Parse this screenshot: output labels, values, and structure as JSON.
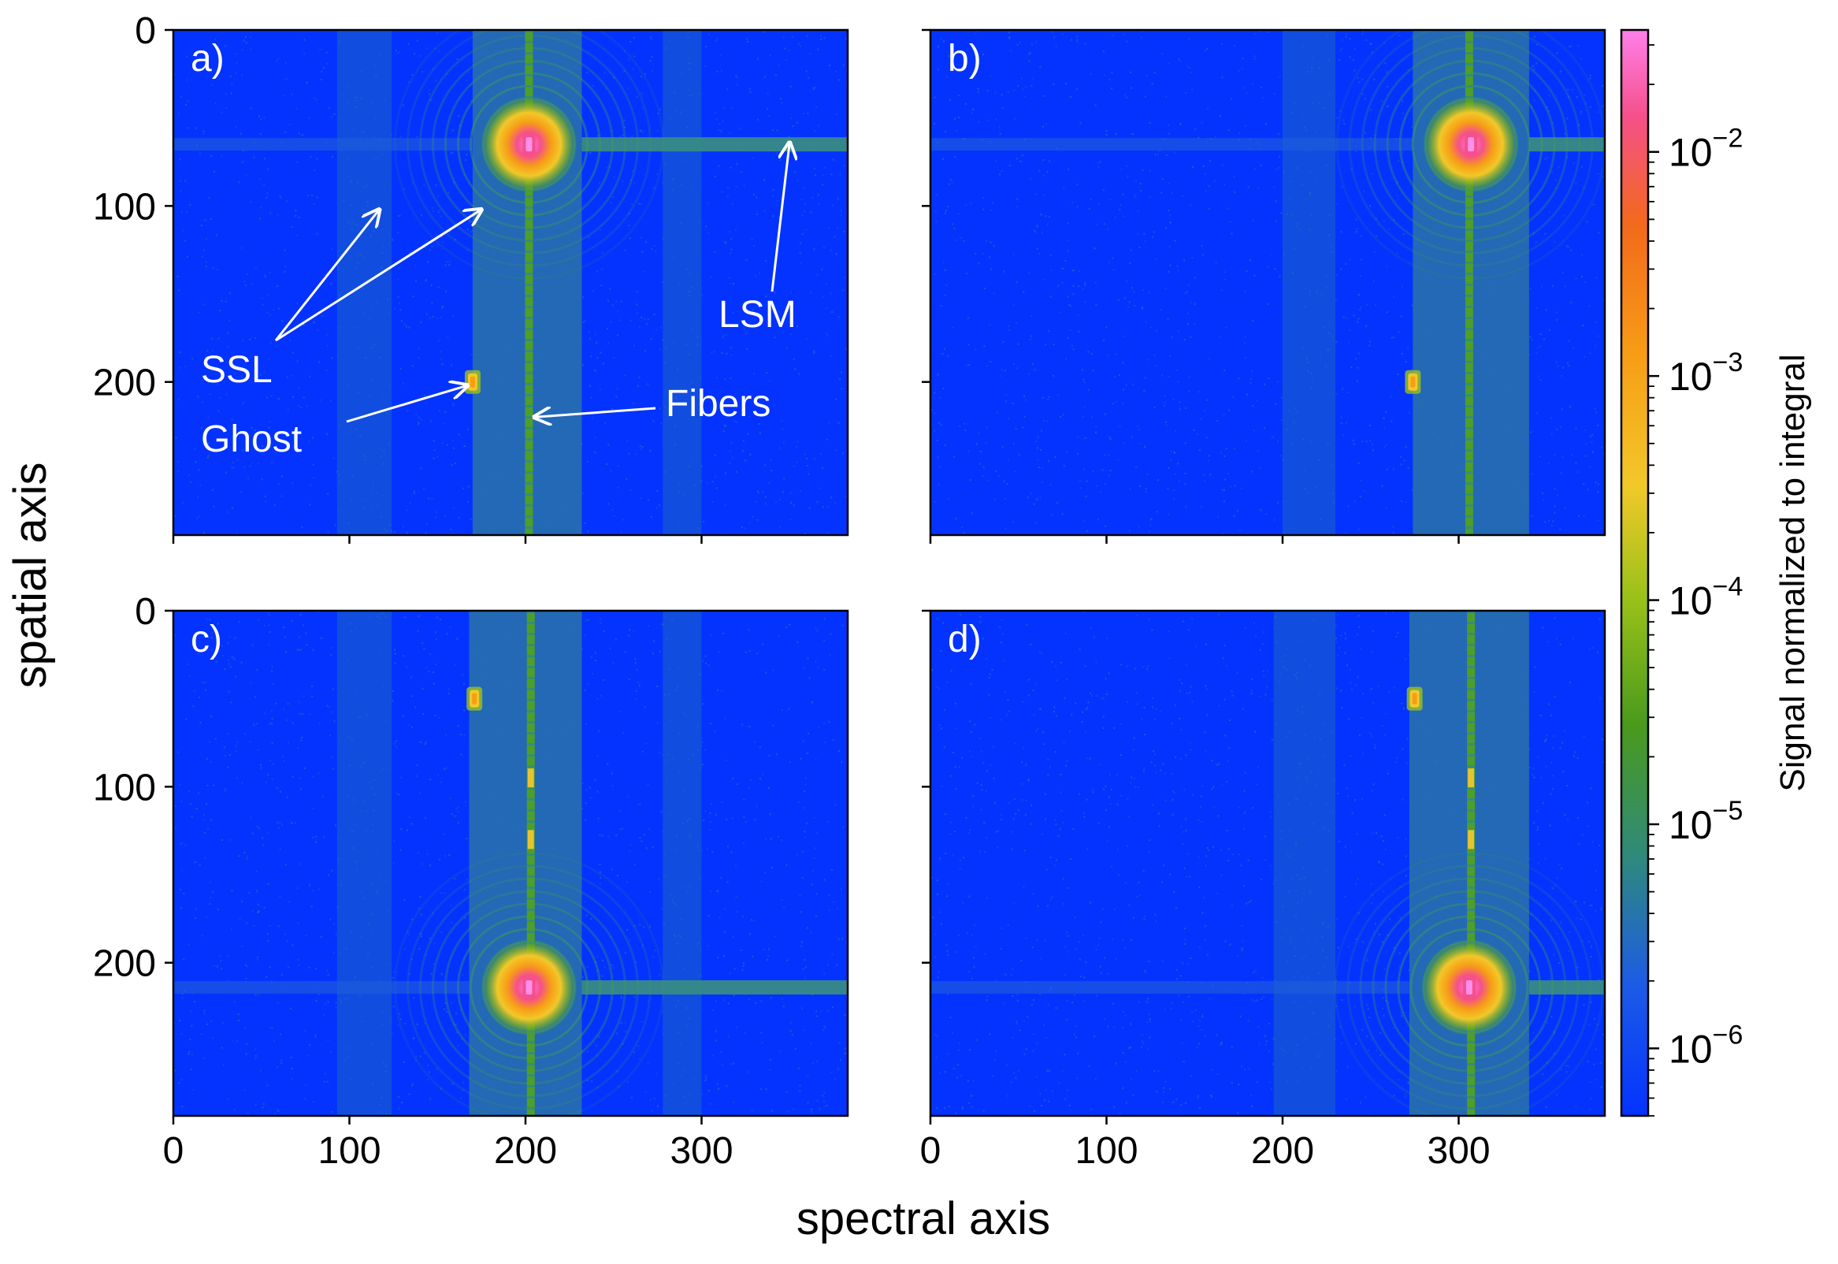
{
  "figure": {
    "xlabel": "spectral axis",
    "ylabel": "spatial axis",
    "colorbar": {
      "label": "Signal normalized to integral",
      "scale": "log",
      "range": [
        5e-07,
        0.035
      ],
      "ticks": [
        {
          "value": 1e-06,
          "base": "10",
          "exp": "−6"
        },
        {
          "value": 1e-05,
          "base": "10",
          "exp": "−5"
        },
        {
          "value": 0.0001,
          "base": "10",
          "exp": "−4"
        },
        {
          "value": 0.001,
          "base": "10",
          "exp": "−3"
        },
        {
          "value": 0.01,
          "base": "10",
          "exp": "−2"
        }
      ],
      "colormap": [
        "#0433ff",
        "#1c5be6",
        "#2f8a7a",
        "#4a9a1c",
        "#9cc21a",
        "#f2c829",
        "#f79d16",
        "#f26a1b",
        "#f5508a",
        "#ff80ea"
      ]
    },
    "annotations": [
      {
        "text": "SSL",
        "panel": "a"
      },
      {
        "text": "Ghost",
        "panel": "a"
      },
      {
        "text": "Fibers",
        "panel": "a"
      },
      {
        "text": "LSM",
        "panel": "a"
      }
    ]
  },
  "chart_data": [
    {
      "type": "heatmap",
      "panel_label": "a)",
      "xlim": [
        0,
        383
      ],
      "ylim": [
        287,
        0
      ],
      "xticks": [
        0,
        100,
        200,
        300
      ],
      "yticks": [
        0,
        100,
        200
      ],
      "show_xticklabels": false,
      "show_yticklabels": true,
      "background_level": 7e-07,
      "fiber_x": 202,
      "ssl_band_x": [
        170,
        232
      ],
      "faint_bands_x": [
        [
          93,
          124
        ],
        [
          278,
          300
        ]
      ],
      "main_spot": {
        "x": 202,
        "y": 65,
        "peak": 0.03
      },
      "ghost_spot": {
        "x": 170,
        "y": 200,
        "peak": 0.003
      },
      "lsm_stripe": {
        "y": 65,
        "x_from": 232,
        "x_to": 383
      },
      "fiber_hot_y": []
    },
    {
      "type": "heatmap",
      "panel_label": "b)",
      "xlim": [
        0,
        383
      ],
      "ylim": [
        287,
        0
      ],
      "xticks": [
        0,
        100,
        200,
        300
      ],
      "yticks": [
        0,
        100,
        200
      ],
      "show_xticklabels": false,
      "show_yticklabels": false,
      "background_level": 7e-07,
      "fiber_x": 306,
      "ssl_band_x": [
        274,
        340
      ],
      "faint_bands_x": [
        [
          200,
          230
        ]
      ],
      "main_spot": {
        "x": 307,
        "y": 65,
        "peak": 0.03
      },
      "ghost_spot": {
        "x": 274,
        "y": 200,
        "peak": 0.003
      },
      "lsm_stripe": {
        "y": 65,
        "x_from": 340,
        "x_to": 383
      },
      "fiber_hot_y": []
    },
    {
      "type": "heatmap",
      "panel_label": "c)",
      "xlim": [
        0,
        383
      ],
      "ylim": [
        287,
        0
      ],
      "xticks": [
        0,
        100,
        200,
        300
      ],
      "yticks": [
        0,
        100,
        200
      ],
      "show_xticklabels": true,
      "show_yticklabels": true,
      "background_level": 7e-07,
      "fiber_x": 203,
      "ssl_band_x": [
        168,
        232
      ],
      "faint_bands_x": [
        [
          93,
          124
        ],
        [
          278,
          300
        ]
      ],
      "main_spot": {
        "x": 202,
        "y": 214,
        "peak": 0.03
      },
      "ghost_spot": {
        "x": 171,
        "y": 50,
        "peak": 0.003
      },
      "lsm_stripe": {
        "y": 214,
        "x_from": 232,
        "x_to": 383
      },
      "fiber_hot_y": [
        95,
        130
      ]
    },
    {
      "type": "heatmap",
      "panel_label": "d)",
      "xlim": [
        0,
        383
      ],
      "ylim": [
        287,
        0
      ],
      "xticks": [
        0,
        100,
        200,
        300
      ],
      "yticks": [
        0,
        100,
        200
      ],
      "show_xticklabels": true,
      "show_yticklabels": false,
      "background_level": 7e-07,
      "fiber_x": 307,
      "ssl_band_x": [
        272,
        340
      ],
      "faint_bands_x": [
        [
          195,
          230
        ]
      ],
      "main_spot": {
        "x": 306,
        "y": 214,
        "peak": 0.03
      },
      "ghost_spot": {
        "x": 275,
        "y": 50,
        "peak": 0.003
      },
      "lsm_stripe": {
        "y": 214,
        "x_from": 340,
        "x_to": 383
      },
      "fiber_hot_y": [
        95,
        130
      ]
    }
  ]
}
